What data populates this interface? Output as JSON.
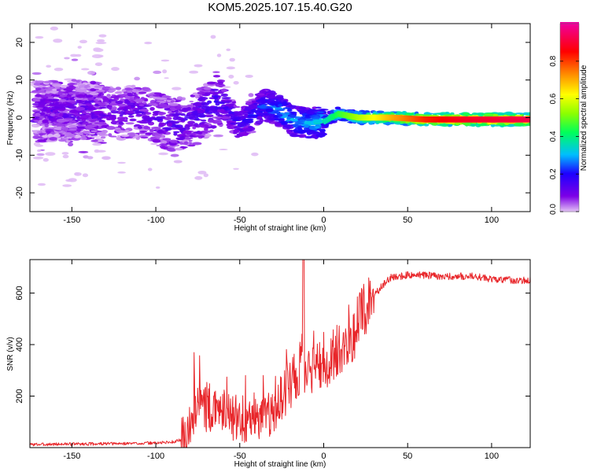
{
  "chart_data": [
    {
      "type": "heatmap",
      "title": "KOM5.2025.107.15.40.G20",
      "xlabel": "Height of straight line (km)",
      "ylabel": "Frequency (Hz)",
      "xlim": [
        -175,
        123
      ],
      "ylim": [
        -25,
        25
      ],
      "xticks": [
        "-150",
        "-100",
        "-50",
        "0",
        "50",
        "100"
      ],
      "yticks": [
        "-20",
        "-10",
        "0",
        "10",
        "20"
      ],
      "colorbar": {
        "label": "Normalized spectral amplitude",
        "range": [
          0,
          1
        ],
        "ticks": [
          "0.0",
          "0.2",
          "0.4",
          "0.6",
          "0.8"
        ],
        "colormap": "rainbow"
      },
      "ridge": [
        {
          "x": -170,
          "freq": 1.5,
          "amp": 0.08
        },
        {
          "x": -150,
          "freq": 2.0,
          "amp": 0.09
        },
        {
          "x": -130,
          "freq": 1.0,
          "amp": 0.1
        },
        {
          "x": -110,
          "freq": 1.5,
          "amp": 0.1
        },
        {
          "x": -90,
          "freq": -2.0,
          "amp": 0.12
        },
        {
          "x": -75,
          "freq": 0.0,
          "amp": 0.13
        },
        {
          "x": -62,
          "freq": 5.0,
          "amp": 0.15
        },
        {
          "x": -50,
          "freq": -2.0,
          "amp": 0.16
        },
        {
          "x": -35,
          "freq": 3.5,
          "amp": 0.22
        },
        {
          "x": -25,
          "freq": 1.5,
          "amp": 0.3
        },
        {
          "x": -18,
          "freq": -1.0,
          "amp": 0.28
        },
        {
          "x": -8,
          "freq": -1.5,
          "amp": 0.32
        },
        {
          "x": 0,
          "freq": -1.0,
          "amp": 0.35
        },
        {
          "x": 8,
          "freq": 1.0,
          "amp": 0.45
        },
        {
          "x": 20,
          "freq": 0.0,
          "amp": 0.55
        },
        {
          "x": 40,
          "freq": 0.0,
          "amp": 0.7
        },
        {
          "x": 60,
          "freq": -0.5,
          "amp": 0.82
        },
        {
          "x": 80,
          "freq": -0.5,
          "amp": 0.88
        },
        {
          "x": 100,
          "freq": -0.5,
          "amp": 0.9
        },
        {
          "x": 123,
          "freq": -0.5,
          "amp": 0.92
        }
      ]
    },
    {
      "type": "line",
      "title": "",
      "xlabel": "Height of straight line (km)",
      "ylabel": "SNR (v/v)",
      "xlim": [
        -175,
        123
      ],
      "ylim": [
        0,
        730
      ],
      "xticks": [
        "-150",
        "-100",
        "-50",
        "0",
        "50",
        "100"
      ],
      "yticks": [
        "200",
        "400",
        "600"
      ],
      "color": "#e8262a",
      "series": [
        {
          "x": [
            -175,
            -150,
            -125,
            -100,
            -90,
            -82,
            -78,
            -74,
            -70,
            -65,
            -60,
            -55,
            -50,
            -45,
            -40,
            -35,
            -30,
            -25,
            -20,
            -15,
            -12,
            -10,
            -5,
            0,
            5,
            10,
            15,
            20,
            25,
            30,
            35,
            40,
            50,
            60,
            70,
            80,
            90,
            100,
            110,
            123
          ],
          "y": [
            12,
            14,
            15,
            18,
            22,
            35,
            120,
            180,
            150,
            130,
            160,
            110,
            120,
            100,
            110,
            140,
            120,
            200,
            260,
            300,
            330,
            280,
            320,
            340,
            350,
            380,
            400,
            480,
            540,
            590,
            630,
            660,
            670,
            670,
            665,
            665,
            665,
            655,
            650,
            650
          ]
        }
      ]
    }
  ]
}
